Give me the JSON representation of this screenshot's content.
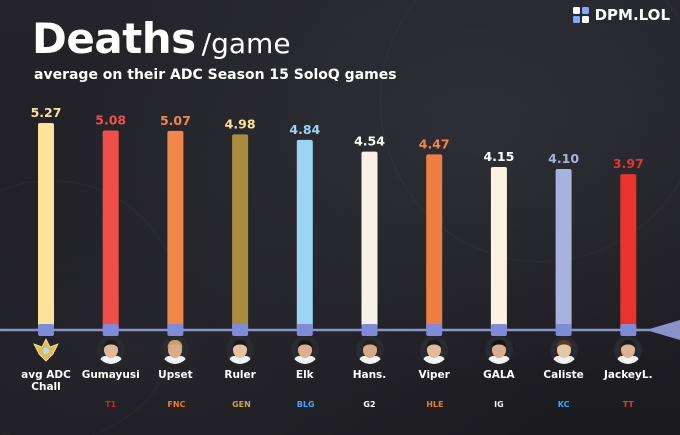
{
  "brand": {
    "name": "DPM.LOL",
    "logo_icon": "dpm-logo-icon"
  },
  "header": {
    "title": "Deaths",
    "title_suffix": "/game",
    "subtitle": "average on their ADC Season 15 SoloQ games"
  },
  "chart_data": {
    "type": "bar",
    "title": "Deaths /game",
    "subtitle": "average on their ADC Season 15 SoloQ games",
    "xlabel": "",
    "ylabel": "",
    "ylim": [
      0,
      5.27
    ],
    "grid": false,
    "legend": "none",
    "categories": [
      "avg ADC Chall",
      "Gumayusi",
      "Upset",
      "Ruler",
      "Elk",
      "Hans.",
      "Viper",
      "GALA",
      "Caliste",
      "JackeyL."
    ],
    "values": [
      5.27,
      5.08,
      5.07,
      4.98,
      4.84,
      4.54,
      4.47,
      4.15,
      4.1,
      3.97
    ],
    "value_labels": [
      "5.27",
      "5.08",
      "5.07",
      "4.98",
      "4.84",
      "4.54",
      "4.47",
      "4.15",
      "4.10",
      "3.97"
    ],
    "colors": [
      "#fbe19a",
      "#f0504c",
      "#f0874a",
      "#a98c3e",
      "#9bd4f7",
      "#f7f1e6",
      "#ee7e44",
      "#faf3df",
      "#a7b3dd",
      "#e8342c"
    ],
    "label_colors": [
      "#fbe19a",
      "#f0504c",
      "#f0874a",
      "#fbe19a",
      "#9bd4f7",
      "#ffffff",
      "#f0874a",
      "#ffffff",
      "#a7b3dd",
      "#e8342c"
    ]
  },
  "players": [
    {
      "name": "avg ADC Chall",
      "team": "",
      "icon": "challenger-emblem-icon"
    },
    {
      "name": "Gumayusi",
      "team": "T1",
      "icon": "t1-logo-icon"
    },
    {
      "name": "Upset",
      "team": "FNC",
      "icon": "fnatic-logo-icon"
    },
    {
      "name": "Ruler",
      "team": "GEN",
      "icon": "gen-g-logo-icon"
    },
    {
      "name": "Elk",
      "team": "BLG",
      "icon": "blg-logo-icon"
    },
    {
      "name": "Hans.",
      "team": "G2",
      "icon": "g2-logo-icon"
    },
    {
      "name": "Viper",
      "team": "HLE",
      "icon": "hle-logo-icon"
    },
    {
      "name": "GALA",
      "team": "IG",
      "icon": "ig-logo-icon"
    },
    {
      "name": "Caliste",
      "team": "KC",
      "icon": "kc-logo-icon"
    },
    {
      "name": "JackeyL.",
      "team": "TT",
      "icon": "tt-logo-icon"
    }
  ]
}
